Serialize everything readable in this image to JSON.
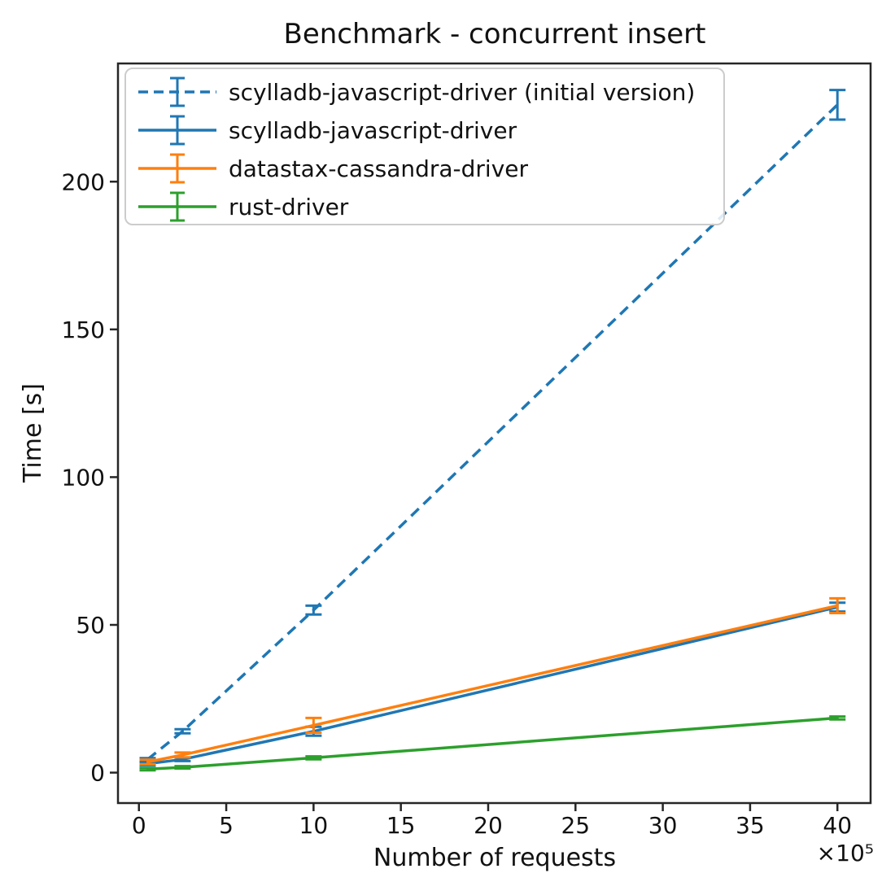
{
  "chart_data": {
    "type": "line",
    "title": "Benchmark - concurrent insert",
    "xlabel": "Number of requests",
    "ylabel": "Time [s]",
    "x_offset_label": "×10⁵",
    "grid": false,
    "legend_position": "upper left",
    "x": [
      0.5,
      2.5,
      10,
      40
    ],
    "x_ticks": [
      0,
      5,
      10,
      15,
      20,
      25,
      30,
      35,
      40
    ],
    "y_ticks": [
      0,
      50,
      100,
      150,
      200
    ],
    "xlim": [
      -1.2,
      41.9
    ],
    "ylim": [
      -10.3,
      240
    ],
    "colors": {
      "axis": "#262626",
      "legend_border": "#cccccc",
      "background": "#ffffff"
    },
    "series": [
      {
        "name": "scylladb-javascript-driver (initial version)",
        "color": "#1f77b4",
        "line_style": "dashed",
        "values": [
          4.5,
          14,
          55,
          226
        ],
        "yerr": [
          0.4,
          0.7,
          1.5,
          5
        ]
      },
      {
        "name": "scylladb-javascript-driver",
        "color": "#1f77b4",
        "line_style": "solid",
        "values": [
          3.0,
          4.5,
          14,
          56
        ],
        "yerr": [
          0.5,
          0.6,
          1.5,
          1.5
        ]
      },
      {
        "name": "datastax-cassandra-driver",
        "color": "#ff7f0e",
        "line_style": "solid",
        "values": [
          3.6,
          6.0,
          16,
          56.5
        ],
        "yerr": [
          0.8,
          0.8,
          2.5,
          2.5
        ]
      },
      {
        "name": "rust-driver",
        "color": "#2ca02c",
        "line_style": "solid",
        "values": [
          1.2,
          1.8,
          5.0,
          18.5
        ],
        "yerr": [
          0.4,
          0.4,
          0.5,
          0.5
        ]
      }
    ]
  }
}
